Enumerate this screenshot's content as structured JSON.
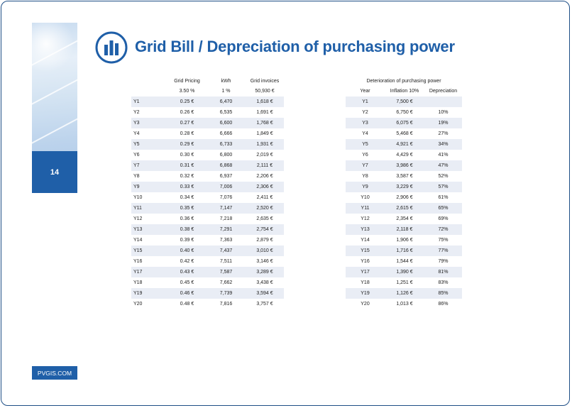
{
  "page": {
    "number": "14",
    "site": "PVGIS.COM"
  },
  "header": {
    "title": "Grid Bill / Depreciation of purchasing power",
    "logo_icon": "bar-chart-icon"
  },
  "colors": {
    "brand_blue": "#1f5fa8",
    "row_stripe": "#e9edf5"
  },
  "grid_table": {
    "headers": [
      "",
      "Grid Pricing",
      "kWh",
      "Grid invoices"
    ],
    "subheaders": [
      "",
      "3.50 %",
      "1 %",
      "50,930 €"
    ],
    "rows": [
      [
        "Y1",
        "0.25 €",
        "6,470",
        "1,618 €"
      ],
      [
        "Y2",
        "0.26 €",
        "6,535",
        "1,691 €"
      ],
      [
        "Y3",
        "0.27 €",
        "6,600",
        "1,768 €"
      ],
      [
        "Y4",
        "0.28 €",
        "6,666",
        "1,849 €"
      ],
      [
        "Y5",
        "0.29 €",
        "6,733",
        "1,931 €"
      ],
      [
        "Y6",
        "0.30 €",
        "6,800",
        "2,019 €"
      ],
      [
        "Y7",
        "0.31 €",
        "6,868",
        "2,111 €"
      ],
      [
        "Y8",
        "0.32 €",
        "6,937",
        "2,206 €"
      ],
      [
        "Y9",
        "0.33 €",
        "7,006",
        "2,306 €"
      ],
      [
        "Y10",
        "0.34 €",
        "7,076",
        "2,411 €"
      ],
      [
        "Y11",
        "0.35 €",
        "7,147",
        "2,520 €"
      ],
      [
        "Y12",
        "0.36 €",
        "7,218",
        "2,635 €"
      ],
      [
        "Y13",
        "0.38 €",
        "7,291",
        "2,754 €"
      ],
      [
        "Y14",
        "0.39 €",
        "7,363",
        "2,879 €"
      ],
      [
        "Y15",
        "0.40 €",
        "7,437",
        "3,010 €"
      ],
      [
        "Y16",
        "0.42 €",
        "7,511",
        "3,146 €"
      ],
      [
        "Y17",
        "0.43 €",
        "7,587",
        "3,289 €"
      ],
      [
        "Y18",
        "0.45 €",
        "7,662",
        "3,438 €"
      ],
      [
        "Y19",
        "0.46 €",
        "7,739",
        "3,594 €"
      ],
      [
        "Y20",
        "0.48 €",
        "7,816",
        "3,757 €"
      ]
    ]
  },
  "depreciation_table": {
    "title": "Deterioration of purchasing power",
    "headers": [
      "Year",
      "Inflation 10%",
      "Depreciation"
    ],
    "rows": [
      [
        "Y1",
        "7,500 €",
        ""
      ],
      [
        "Y2",
        "6,750 €",
        "10%"
      ],
      [
        "Y3",
        "6,075 €",
        "19%"
      ],
      [
        "Y4",
        "5,468 €",
        "27%"
      ],
      [
        "Y5",
        "4,921 €",
        "34%"
      ],
      [
        "Y6",
        "4,429 €",
        "41%"
      ],
      [
        "Y7",
        "3,986 €",
        "47%"
      ],
      [
        "Y8",
        "3,587 €",
        "52%"
      ],
      [
        "Y9",
        "3,229 €",
        "57%"
      ],
      [
        "Y10",
        "2,906 €",
        "61%"
      ],
      [
        "Y11",
        "2,615 €",
        "65%"
      ],
      [
        "Y12",
        "2,354 €",
        "69%"
      ],
      [
        "Y13",
        "2,118 €",
        "72%"
      ],
      [
        "Y14",
        "1,906 €",
        "75%"
      ],
      [
        "Y15",
        "1,716 €",
        "77%"
      ],
      [
        "Y16",
        "1,544 €",
        "79%"
      ],
      [
        "Y17",
        "1,390 €",
        "81%"
      ],
      [
        "Y18",
        "1,251 €",
        "83%"
      ],
      [
        "Y19",
        "1,126 €",
        "85%"
      ],
      [
        "Y20",
        "1,013 €",
        "86%"
      ]
    ]
  }
}
